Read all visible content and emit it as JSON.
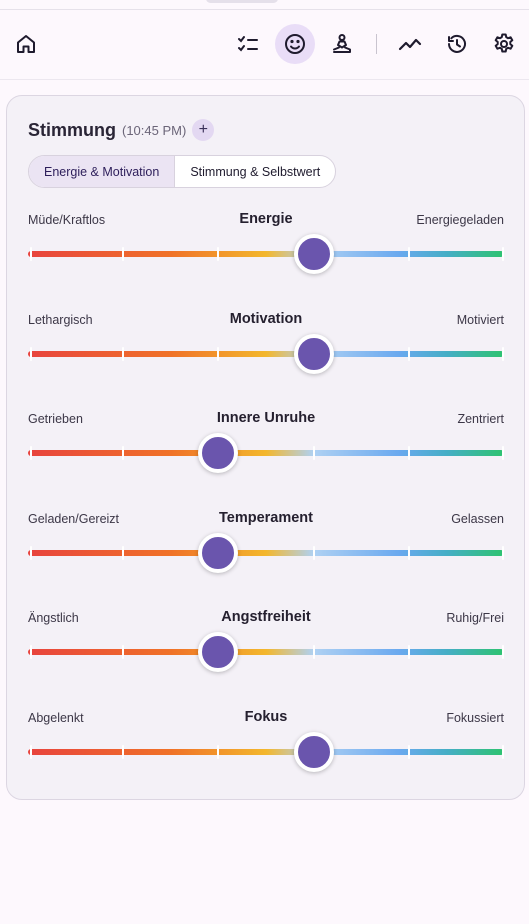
{
  "nav": {
    "items": [
      {
        "icon": "home-icon",
        "active": false
      },
      {
        "icon": "checklist-icon",
        "active": false
      },
      {
        "icon": "smiley-icon",
        "active": true
      },
      {
        "icon": "meditation-icon",
        "active": false
      },
      {
        "icon": "trend-icon",
        "active": false
      },
      {
        "icon": "history-icon",
        "active": false
      },
      {
        "icon": "gear-icon",
        "active": false
      }
    ]
  },
  "card": {
    "title": "Stimmung",
    "time": "(10:45 PM)",
    "add_label": "+",
    "tabs": [
      {
        "label": "Energie & Motivation",
        "active": true
      },
      {
        "label": "Stimmung & Selbstwert",
        "active": false
      }
    ],
    "sliders": [
      {
        "title": "Energie",
        "left": "Müde/Kraftlos",
        "right": "Energiegeladen",
        "value": 0.6
      },
      {
        "title": "Motivation",
        "left": "Lethargisch",
        "right": "Motiviert",
        "value": 0.6
      },
      {
        "title": "Innere Unruhe",
        "left": "Getrieben",
        "right": "Zentriert",
        "value": 0.4
      },
      {
        "title": "Temperament",
        "left": "Geladen/Gereizt",
        "right": "Gelassen",
        "value": 0.4
      },
      {
        "title": "Angstfreiheit",
        "left": "Ängstlich",
        "right": "Ruhig/Frei",
        "value": 0.4
      },
      {
        "title": "Fokus",
        "left": "Abgelenkt",
        "right": "Fokussiert",
        "value": 0.6
      }
    ]
  },
  "colors": {
    "accent": "#6a55ad",
    "active_nav_bg": "#e9ddf7",
    "scale": [
      "#e8443e",
      "#f07228",
      "#f3b72d",
      "#afd1f3",
      "#6aa9ef",
      "#45aec6",
      "#2dc36f"
    ]
  }
}
